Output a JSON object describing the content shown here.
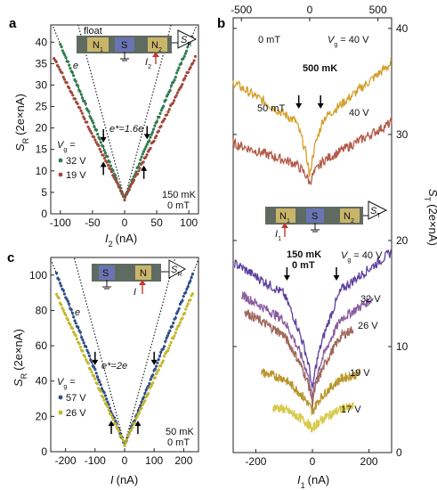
{
  "chart_data": [
    {
      "id": "a",
      "type": "scatter",
      "panel_label": "a",
      "xlabel": "I",
      "xlabel_sub": "2",
      "xlabel_unit": "(nA)",
      "ylabel": "S",
      "ylabel_sub": "R",
      "ylabel_unit": "(2e×nA)",
      "xlim": [
        -115,
        115
      ],
      "ylim": [
        0,
        44
      ],
      "xticks": [
        -100,
        -50,
        0,
        50,
        100
      ],
      "yticks": [
        0,
        5,
        10,
        15,
        20,
        25,
        30,
        35,
        40
      ],
      "legend_title": "V",
      "legend_title_sub": "g",
      "legend_title_suffix": " =",
      "series": [
        {
          "name": "32 V",
          "color": "#2e7d4f",
          "slope_neg": 0.36,
          "slope_pos": 0.36,
          "y0": 3.5,
          "xmin": -100,
          "xmax": 105
        },
        {
          "name": "19 V",
          "color": "#a0493c",
          "slope_neg": 0.3,
          "slope_pos": 0.3,
          "y0": 3.5,
          "xmin": -110,
          "xmax": 110
        }
      ],
      "guides": [
        {
          "label": "e",
          "slope": 0.56,
          "y0": 3.5
        },
        {
          "label": "e*=1.6e",
          "slope": 0.36,
          "y0": 3.5
        }
      ],
      "arrows_down_x": [
        -33,
        35
      ],
      "arrows_up_x": [
        -33,
        30
      ],
      "annotation": [
        "150 mK",
        "0 mT"
      ],
      "device_labels": [
        "float",
        "N",
        "1",
        "S",
        "N",
        "2",
        "S",
        "R",
        "I",
        "2"
      ]
    },
    {
      "id": "c",
      "type": "scatter",
      "panel_label": "c",
      "xlabel": "I",
      "xlabel_unit": "(nA)",
      "ylabel": "S",
      "ylabel_sub": "R",
      "ylabel_unit": "(2e×nA)",
      "xlim": [
        -250,
        250
      ],
      "ylim": [
        0,
        110
      ],
      "xticks": [
        -200,
        -100,
        0,
        100,
        200
      ],
      "yticks": [
        0,
        20,
        40,
        60,
        80,
        100
      ],
      "legend_title": "V",
      "legend_title_sub": "g",
      "legend_title_suffix": " =",
      "series": [
        {
          "name": "57 V",
          "color": "#2f4e8a",
          "slope_neg": 0.42,
          "slope_pos": 0.42,
          "y0": 4,
          "xmin": -230,
          "xmax": 230
        },
        {
          "name": "26 V",
          "color": "#c2b72a",
          "slope_neg": 0.37,
          "slope_pos": 0.37,
          "y0": 4,
          "xmin": -230,
          "xmax": 230
        }
      ],
      "guides": [
        {
          "label": "e",
          "slope": 0.62,
          "y0": 4
        },
        {
          "label": "e*=2e",
          "slope": 0.42,
          "y0": 4
        }
      ],
      "arrows_down_x": [
        -100,
        100
      ],
      "arrows_up_x": [
        -45,
        45
      ],
      "annotation": [
        "50 mK",
        "0 mT"
      ],
      "device_labels": [
        "S",
        "N",
        "S",
        "R",
        "I"
      ]
    },
    {
      "id": "b",
      "type": "line",
      "panel_label": "b",
      "xlabel": "I",
      "xlabel_sub": "1",
      "xlabel_unit": "(nA)",
      "ylabel": "S",
      "ylabel_sub": "T",
      "ylabel_unit": "(2e×nA)",
      "xlim": [
        -280,
        280
      ],
      "ylim": [
        0,
        41
      ],
      "xticks": [
        -200,
        0,
        200
      ],
      "yticks": [
        0,
        10,
        20,
        30,
        40
      ],
      "top_xlim": [
        -560,
        600
      ],
      "top_xticks": [
        -500,
        0,
        500
      ],
      "annotation_top": "500 mK",
      "annotation_mid": [
        "150 mK",
        "0 mT"
      ],
      "vg_label": "V",
      "vg_label_sub": "g",
      "series": [
        {
          "name": "0 mT",
          "value_label": "40 V",
          "color": "#d4a02c",
          "axis": "top",
          "xmin": -560,
          "xmax": 600,
          "y0": 25.3,
          "a": 0.008,
          "b": 0.0105,
          "sharp": 3.2
        },
        {
          "name": "50 mT",
          "value_label": "40 V",
          "color": "#b35a47",
          "axis": "top",
          "xmin": -560,
          "xmax": 600,
          "y0": 25.2,
          "a": 0.0042,
          "b": 0.0072,
          "sharp": 1.0
        },
        {
          "name": "40 V",
          "color": "#5b3f9c",
          "axis": "bottom",
          "xmin": -275,
          "xmax": 278,
          "y0": 5.0,
          "a": 0.0165,
          "b": 0.02,
          "sharp": 5.2
        },
        {
          "name": "32 V",
          "color": "#8a5c9f",
          "axis": "bottom",
          "xmin": -250,
          "xmax": 215,
          "y0": 4.5,
          "a": 0.016,
          "b": 0.017,
          "sharp": 4.0
        },
        {
          "name": "26 V",
          "color": "#a0675a",
          "axis": "bottom",
          "xmin": -240,
          "xmax": 145,
          "y0": 4.2,
          "a": 0.016,
          "b": 0.015,
          "sharp": 3.3
        },
        {
          "name": "19 V",
          "color": "#b9962d",
          "axis": "bottom",
          "xmin": -180,
          "xmax": 170,
          "y0": 3.4,
          "a": 0.007,
          "b": 0.007,
          "sharp": 1.8
        },
        {
          "name": "17 V",
          "color": "#d8c94b",
          "axis": "bottom",
          "xmin": -140,
          "xmax": 145,
          "y0": 2.0,
          "a": 0.005,
          "b": 0.005,
          "sharp": 1.0
        }
      ],
      "arrows_top_x": [
        -80,
        80
      ],
      "arrows_bottom_x": [
        -90,
        85
      ],
      "device_labels": [
        "N",
        "1",
        "S",
        "N",
        "2",
        "S",
        "T",
        "I",
        "1"
      ]
    }
  ]
}
